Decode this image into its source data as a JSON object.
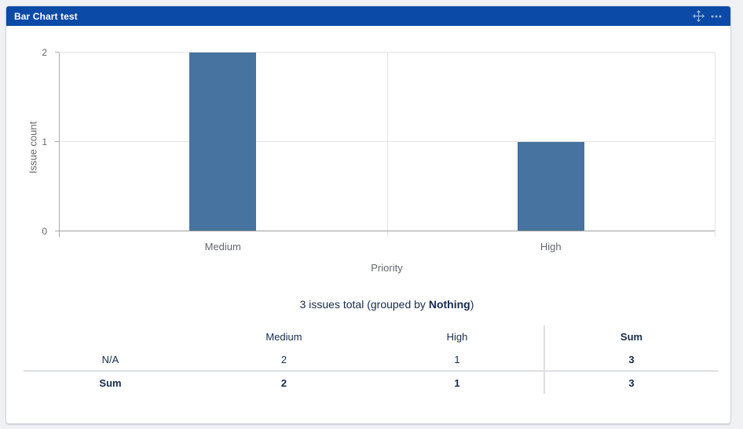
{
  "gadget": {
    "title": "Bar Chart test",
    "header_icons": [
      "move-icon",
      "ellipsis-icon"
    ]
  },
  "chart_data": {
    "type": "bar",
    "categories": [
      "Medium",
      "High"
    ],
    "values": [
      2,
      1
    ],
    "title": "Bar Chart test",
    "xlabel": "Priority",
    "ylabel": "Issue count",
    "ylim": [
      0,
      2
    ],
    "yticks": [
      0,
      1,
      2
    ],
    "grid": true,
    "legend": false,
    "bar_color": "#46739f"
  },
  "summary": {
    "prefix": "3 issues total (grouped by ",
    "group": "Nothing",
    "suffix": ")"
  },
  "table": {
    "headers": [
      "",
      "Medium",
      "High",
      "Sum"
    ],
    "rows": [
      {
        "label": "N/A",
        "values": [
          "2",
          "1",
          "3"
        ],
        "bold": false
      },
      {
        "label": "Sum",
        "values": [
          "2",
          "1",
          "3"
        ],
        "bold": true
      }
    ]
  },
  "colors": {
    "page_bg": "#f0f1f4",
    "header_bg": "#0c4aa8",
    "header_text": "#ffffff",
    "header_icon": "#a2b5dc",
    "bar": "#46739f",
    "text": "#172b4d",
    "axis_label": "#62676e",
    "tick_label": "#666666",
    "gridline": "#e4e4e4",
    "axis_line": "#9e9e9e",
    "table_border": "#dde0e4"
  }
}
